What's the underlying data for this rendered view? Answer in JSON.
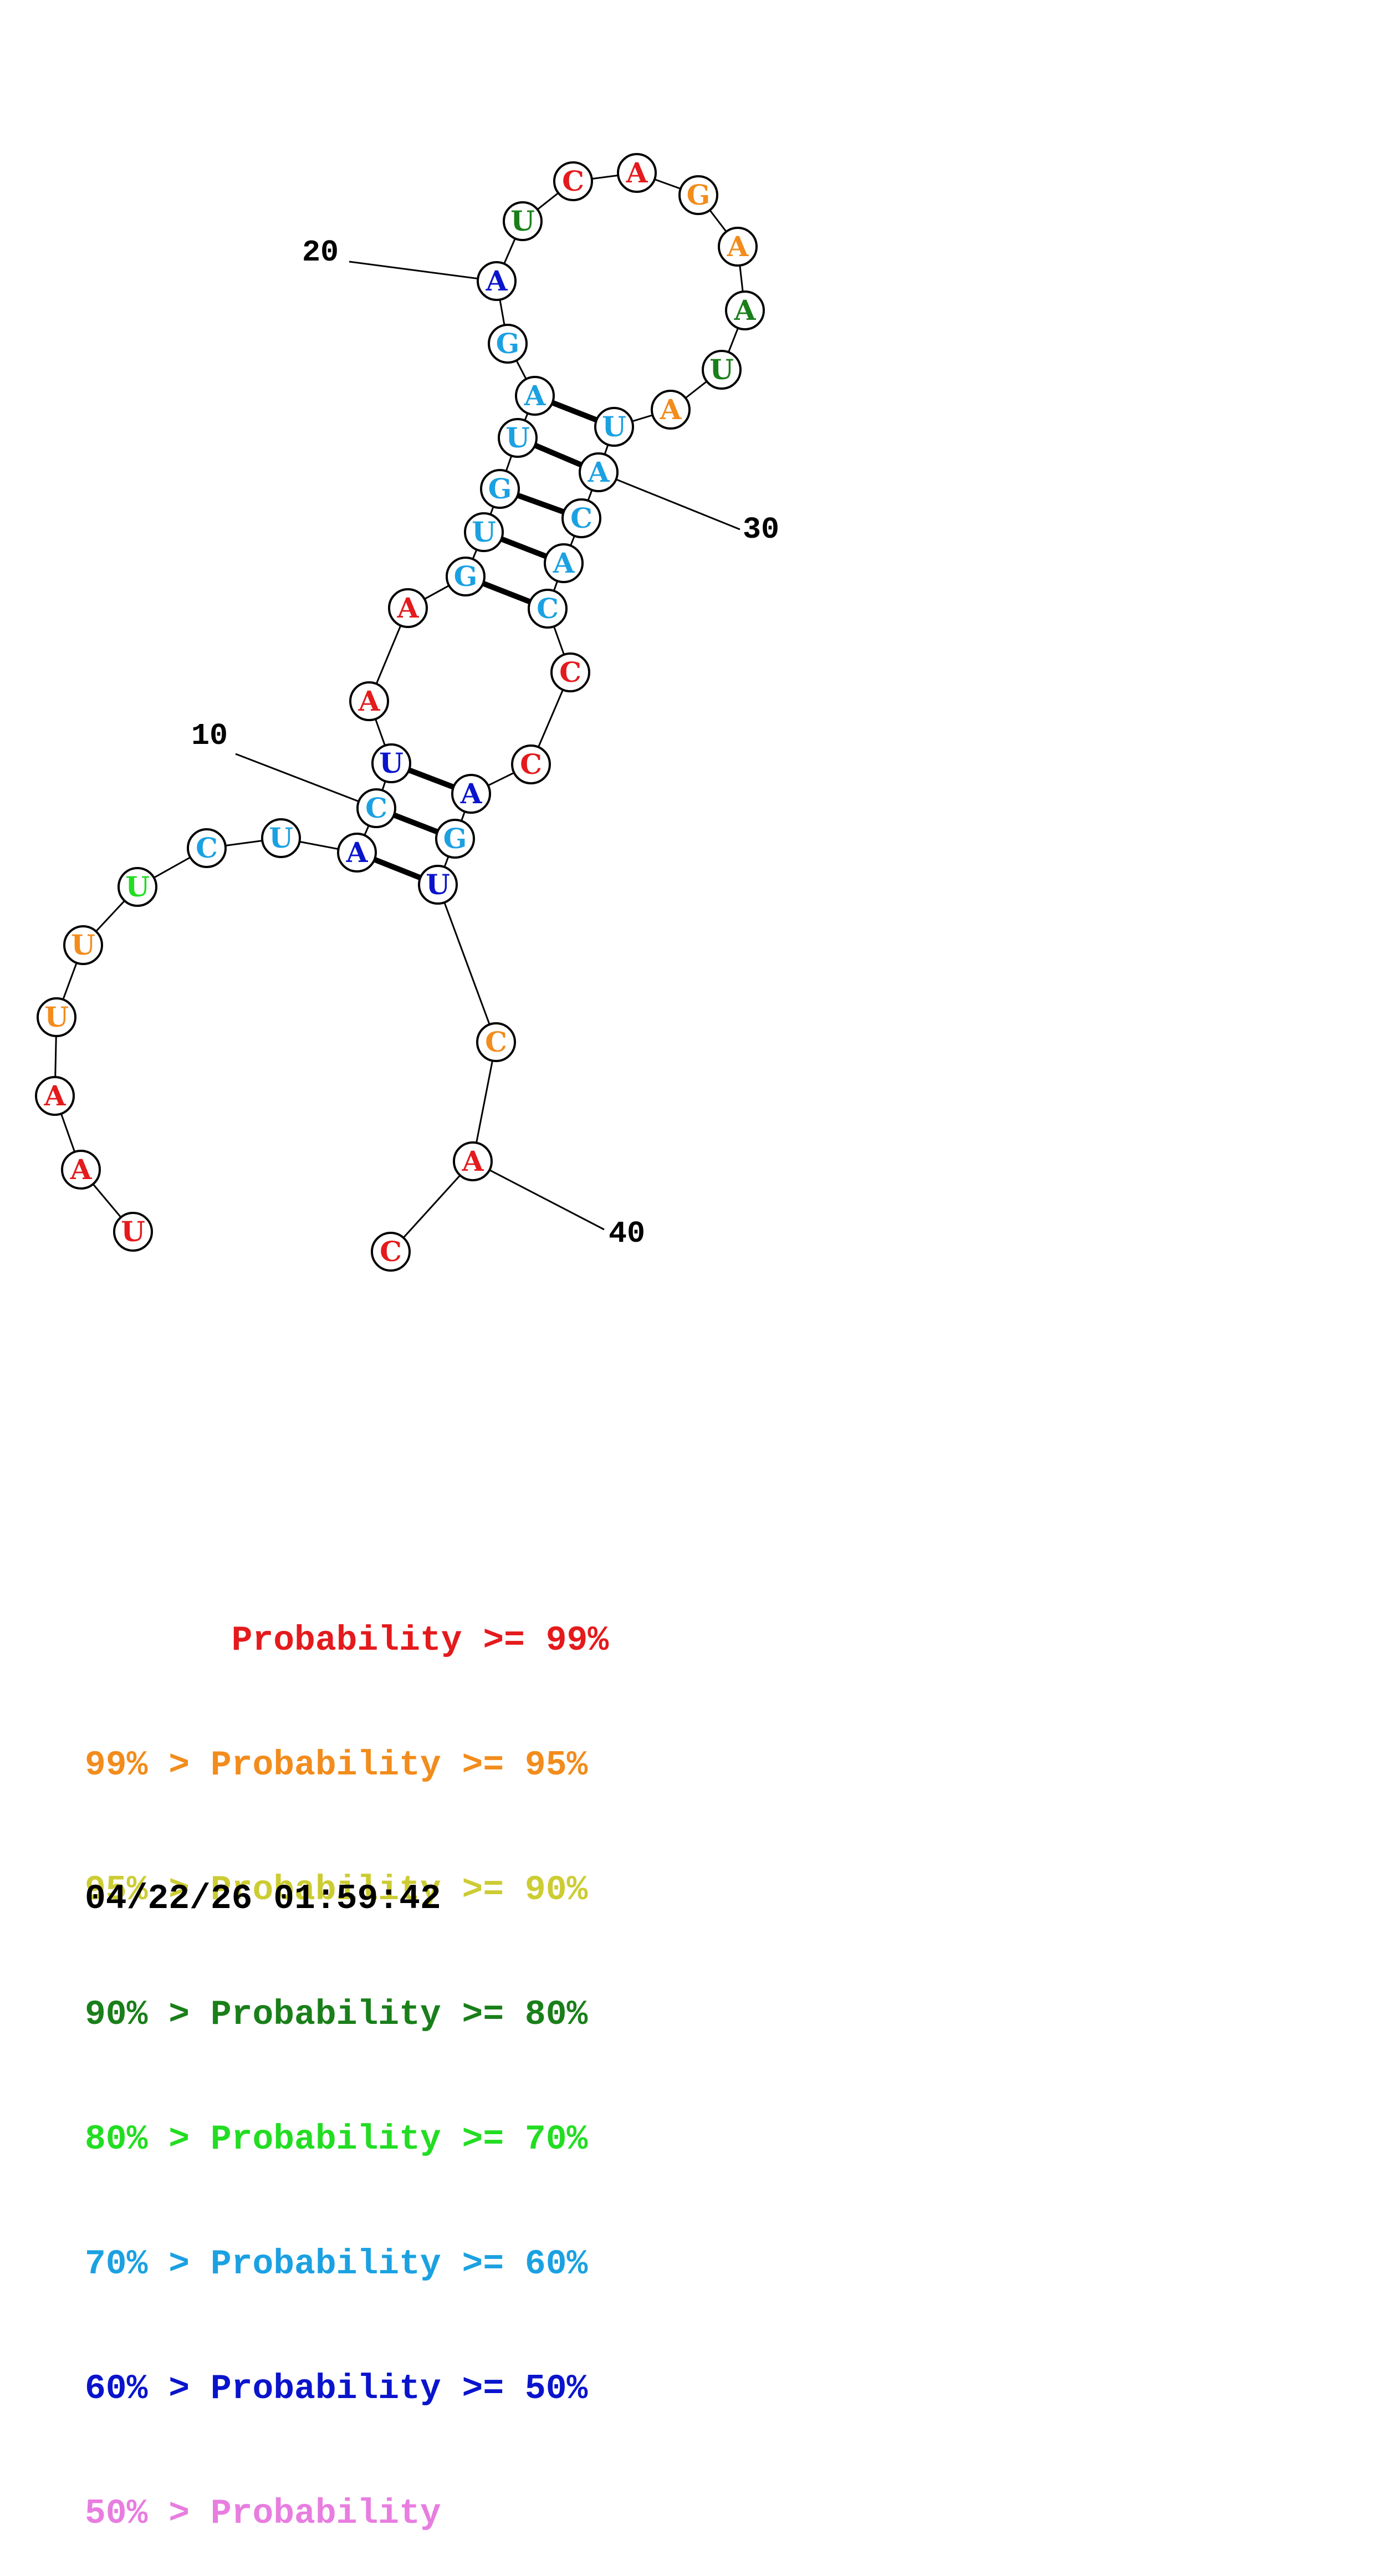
{
  "colors": {
    "p99": "#e41a1c",
    "p95": "#f28c1c",
    "p90": "#cccc33",
    "p80": "#1a7f1a",
    "p70": "#22dd22",
    "p60": "#1ba1e2",
    "p50": "#0a14cc",
    "p_low": "#e87de0"
  },
  "structure": {
    "bases": [
      {
        "n": 1,
        "letter": "U",
        "color": "p99"
      },
      {
        "n": 2,
        "letter": "A",
        "color": "p99"
      },
      {
        "n": 3,
        "letter": "A",
        "color": "p99"
      },
      {
        "n": 4,
        "letter": "U",
        "color": "p95"
      },
      {
        "n": 5,
        "letter": "U",
        "color": "p95"
      },
      {
        "n": 6,
        "letter": "U",
        "color": "p70"
      },
      {
        "n": 7,
        "letter": "C",
        "color": "p60"
      },
      {
        "n": 8,
        "letter": "U",
        "color": "p60"
      },
      {
        "n": 9,
        "letter": "A",
        "color": "p50"
      },
      {
        "n": 10,
        "letter": "C",
        "color": "p60"
      },
      {
        "n": 11,
        "letter": "U",
        "color": "p50"
      },
      {
        "n": 12,
        "letter": "A",
        "color": "p99"
      },
      {
        "n": 13,
        "letter": "A",
        "color": "p99"
      },
      {
        "n": 14,
        "letter": "G",
        "color": "p60"
      },
      {
        "n": 15,
        "letter": "U",
        "color": "p60"
      },
      {
        "n": 16,
        "letter": "G",
        "color": "p60"
      },
      {
        "n": 17,
        "letter": "U",
        "color": "p60"
      },
      {
        "n": 18,
        "letter": "A",
        "color": "p60"
      },
      {
        "n": 19,
        "letter": "G",
        "color": "p60"
      },
      {
        "n": 20,
        "letter": "A",
        "color": "p50"
      },
      {
        "n": 21,
        "letter": "U",
        "color": "p80"
      },
      {
        "n": 22,
        "letter": "C",
        "color": "p99"
      },
      {
        "n": 23,
        "letter": "A",
        "color": "p99"
      },
      {
        "n": 24,
        "letter": "G",
        "color": "p95"
      },
      {
        "n": 25,
        "letter": "A",
        "color": "p95"
      },
      {
        "n": 26,
        "letter": "A",
        "color": "p80"
      },
      {
        "n": 27,
        "letter": "U",
        "color": "p80"
      },
      {
        "n": 28,
        "letter": "A",
        "color": "p95"
      },
      {
        "n": 29,
        "letter": "U",
        "color": "p60"
      },
      {
        "n": 30,
        "letter": "A",
        "color": "p60"
      },
      {
        "n": 31,
        "letter": "C",
        "color": "p60"
      },
      {
        "n": 32,
        "letter": "A",
        "color": "p60"
      },
      {
        "n": 33,
        "letter": "C",
        "color": "p60"
      },
      {
        "n": 34,
        "letter": "C",
        "color": "p99"
      },
      {
        "n": 35,
        "letter": "C",
        "color": "p99"
      },
      {
        "n": 36,
        "letter": "A",
        "color": "p50"
      },
      {
        "n": 37,
        "letter": "G",
        "color": "p60"
      },
      {
        "n": 38,
        "letter": "U",
        "color": "p50"
      },
      {
        "n": 39,
        "letter": "C",
        "color": "p95"
      },
      {
        "n": 40,
        "letter": "A",
        "color": "p99"
      },
      {
        "n": 41,
        "letter": "C",
        "color": "p99"
      }
    ],
    "pairs": [
      [
        9,
        38
      ],
      [
        10,
        37
      ],
      [
        11,
        36
      ],
      [
        14,
        33
      ],
      [
        15,
        32
      ],
      [
        16,
        31
      ],
      [
        17,
        30
      ],
      [
        18,
        29
      ]
    ],
    "index_labels": [
      {
        "n": 10,
        "text": "10"
      },
      {
        "n": 20,
        "text": "20"
      },
      {
        "n": 30,
        "text": "30"
      },
      {
        "n": 40,
        "text": "40"
      }
    ]
  },
  "legend": {
    "lines": [
      {
        "text": "       Probability >= 99%",
        "color": "p99"
      },
      {
        "text": "99% > Probability >= 95%",
        "color": "p95"
      },
      {
        "text": "95% > Probability >= 90%",
        "color": "p90"
      },
      {
        "text": "90% > Probability >= 80%",
        "color": "p80"
      },
      {
        "text": "80% > Probability >= 70%",
        "color": "p70"
      },
      {
        "text": "70% > Probability >= 60%",
        "color": "p60"
      },
      {
        "text": "60% > Probability >= 50%",
        "color": "p50"
      },
      {
        "text": "50% > Probability",
        "color": "p_low"
      }
    ]
  },
  "timestamp": "04/22/26 01:59:42"
}
